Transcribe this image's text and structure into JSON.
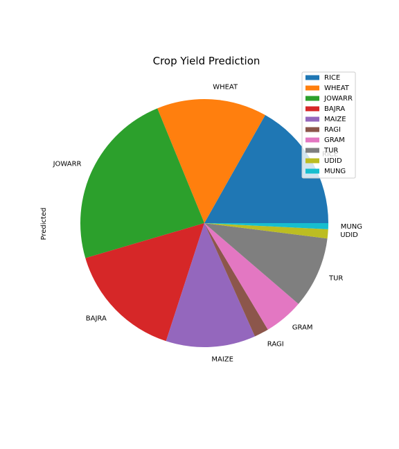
{
  "chart_data": {
    "type": "pie",
    "title": "Crop Yield Prediction",
    "ylabel": "Predicted",
    "legend_location": "top-right",
    "start_angle_deg": 0,
    "direction": "counterclockwise",
    "slices": [
      {
        "label": "RICE",
        "value": 17.0,
        "color": "#1f77b4"
      },
      {
        "label": "WHEAT",
        "value": 14.5,
        "color": "#ff7f0e"
      },
      {
        "label": "JOWARR",
        "value": 23.6,
        "color": "#2ca02c"
      },
      {
        "label": "BAJRA",
        "value": 15.6,
        "color": "#d62728"
      },
      {
        "label": "MAIZE",
        "value": 11.8,
        "color": "#9467bd"
      },
      {
        "label": "RAGI",
        "value": 1.9,
        "color": "#8c564b"
      },
      {
        "label": "GRAM",
        "value": 5.2,
        "color": "#e377c2"
      },
      {
        "label": "TUR",
        "value": 9.4,
        "color": "#7f7f7f"
      },
      {
        "label": "UDID",
        "value": 1.2,
        "color": "#bcbd22"
      },
      {
        "label": "MUNG",
        "value": 0.8,
        "color": "#17becf"
      }
    ]
  }
}
